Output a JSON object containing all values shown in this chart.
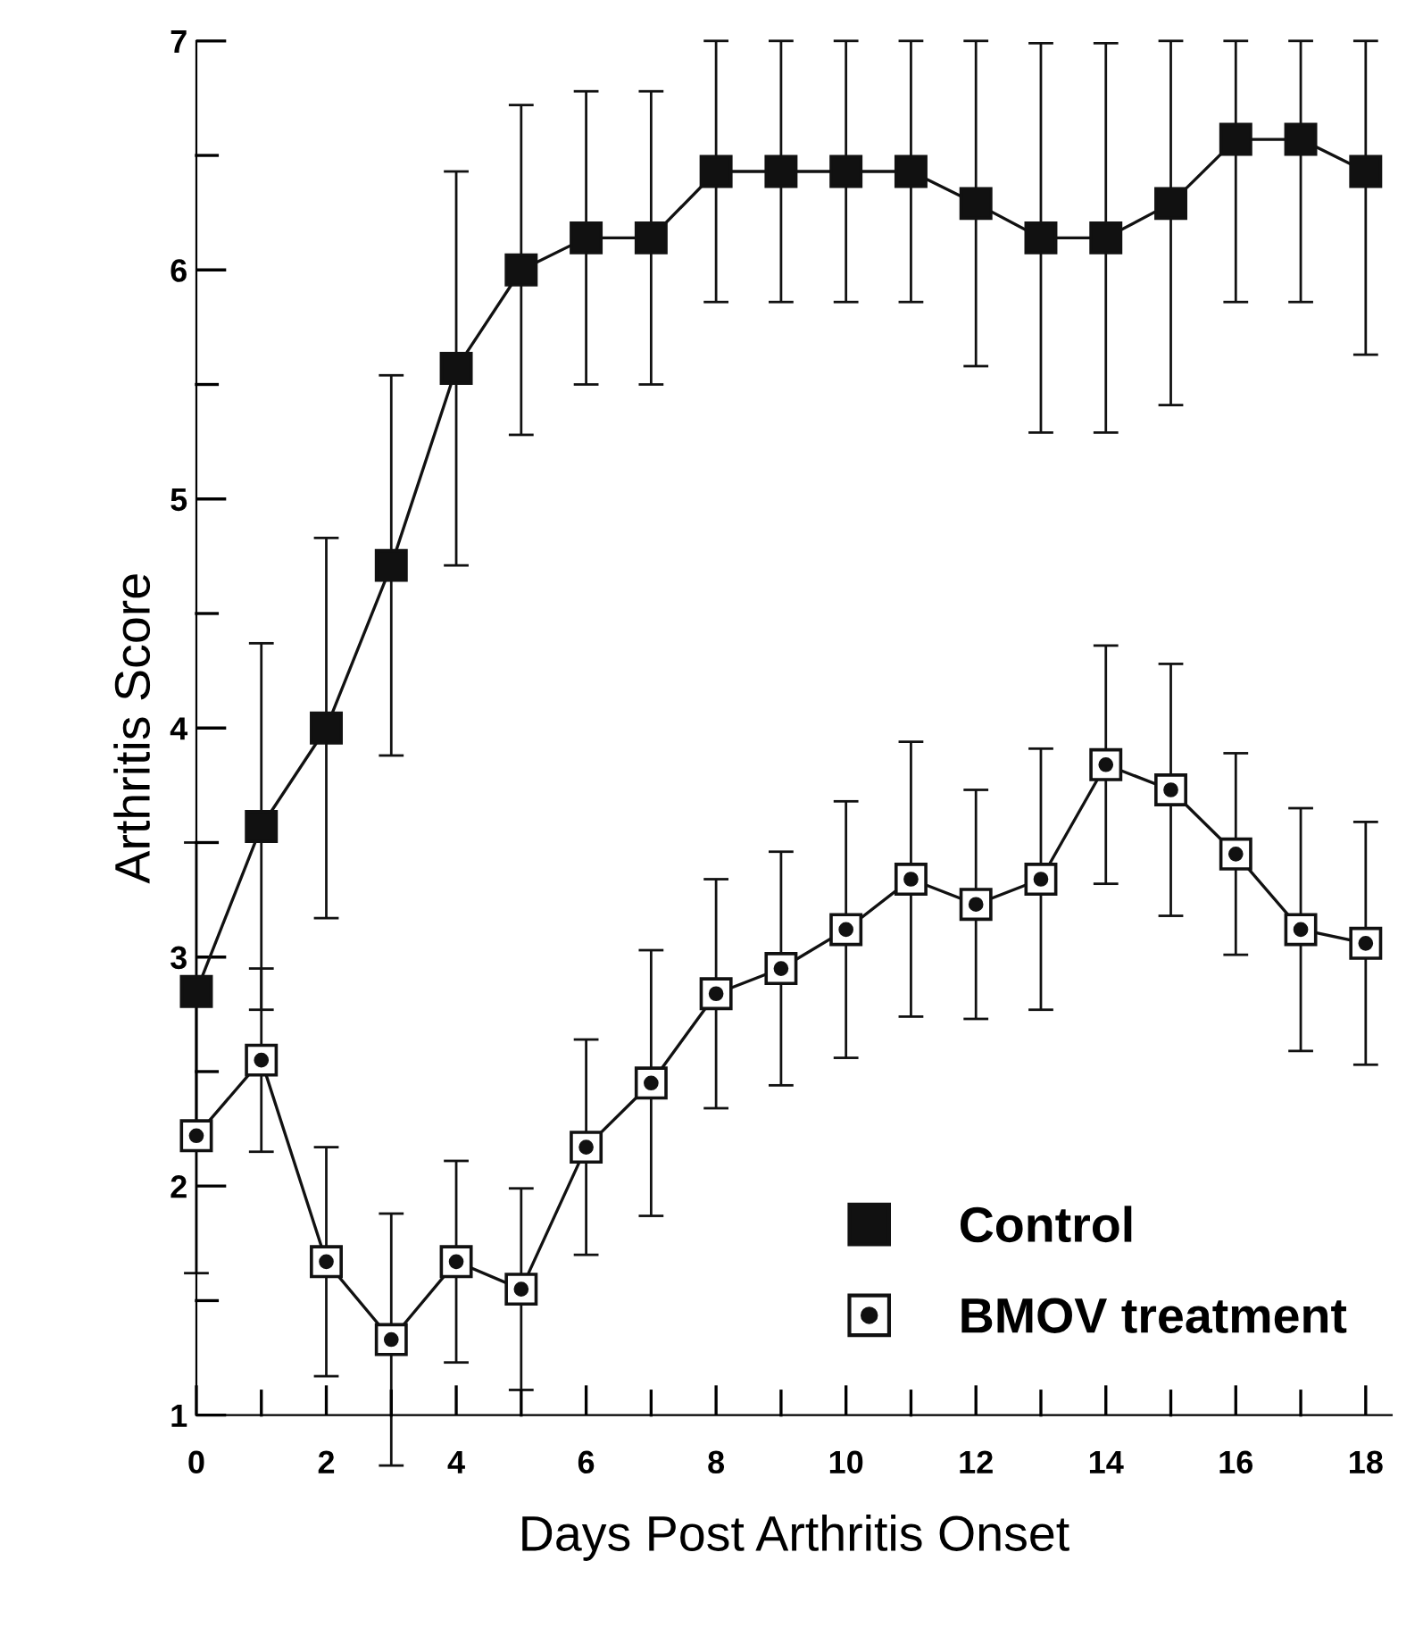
{
  "chart_data": {
    "type": "line",
    "xlabel": "Days Post Arthritis Onset",
    "ylabel": "Arthritis Score",
    "x": [
      0,
      1,
      2,
      3,
      4,
      5,
      6,
      7,
      8,
      9,
      10,
      11,
      12,
      13,
      14,
      15,
      16,
      17,
      18
    ],
    "xlim": [
      0,
      18.4
    ],
    "xticks": [
      0,
      {
        "value": 1,
        "label": null
      },
      2,
      {
        "value": 3,
        "label": null
      },
      4,
      {
        "value": 5,
        "label": null
      },
      6,
      {
        "value": 7,
        "label": null
      },
      8,
      {
        "value": 9,
        "label": null
      },
      10,
      {
        "value": 11,
        "label": null
      },
      12,
      {
        "value": 13,
        "label": null
      },
      14,
      {
        "value": 15,
        "label": null
      },
      16,
      {
        "value": 17,
        "label": null
      },
      18
    ],
    "ylim": [
      1,
      7
    ],
    "yticks": [
      1,
      {
        "value": 1.5,
        "label": null
      },
      2,
      {
        "value": 2.5,
        "label": null
      },
      3,
      {
        "value": 3.5,
        "label": null
      },
      4,
      {
        "value": 4.5,
        "label": null
      },
      5,
      {
        "value": 5.5,
        "label": null
      },
      6,
      {
        "value": 6.5,
        "label": null
      },
      7
    ],
    "marker": "square",
    "line_style": "solid",
    "grid": false,
    "legend": "bottom right",
    "series": [
      {
        "name": "Control",
        "color": "#111111",
        "values": [
          2.85,
          3.57,
          4.0,
          4.71,
          5.57,
          6.0,
          6.14,
          6.14,
          6.43,
          6.43,
          6.43,
          6.43,
          6.29,
          6.14,
          6.14,
          6.29,
          6.57,
          6.57,
          6.43
        ],
        "errors": [
          0.65,
          0.8,
          0.83,
          0.83,
          0.86,
          0.72,
          0.64,
          0.64,
          0.57,
          0.57,
          0.57,
          0.57,
          0.71,
          0.85,
          0.85,
          [
            5.41,
            7.0
          ],
          [
            5.86,
            7.0
          ],
          [
            5.86,
            7.0
          ],
          [
            5.63,
            7.0
          ]
        ]
      },
      {
        "name": "BMOV treatment",
        "color": "#111111",
        "values": [
          2.22,
          2.55,
          1.67,
          1.33,
          1.67,
          1.55,
          2.17,
          2.45,
          2.84,
          2.95,
          3.12,
          3.34,
          3.23,
          3.34,
          3.84,
          3.73,
          3.45,
          3.12,
          3.06
        ],
        "errors": [
          0.6,
          0.4,
          0.5,
          0.55,
          0.44,
          0.44,
          0.47,
          0.58,
          0.5,
          0.51,
          0.56,
          0.6,
          0.5,
          0.57,
          0.52,
          0.55,
          0.44,
          0.53,
          0.53
        ]
      }
    ]
  }
}
